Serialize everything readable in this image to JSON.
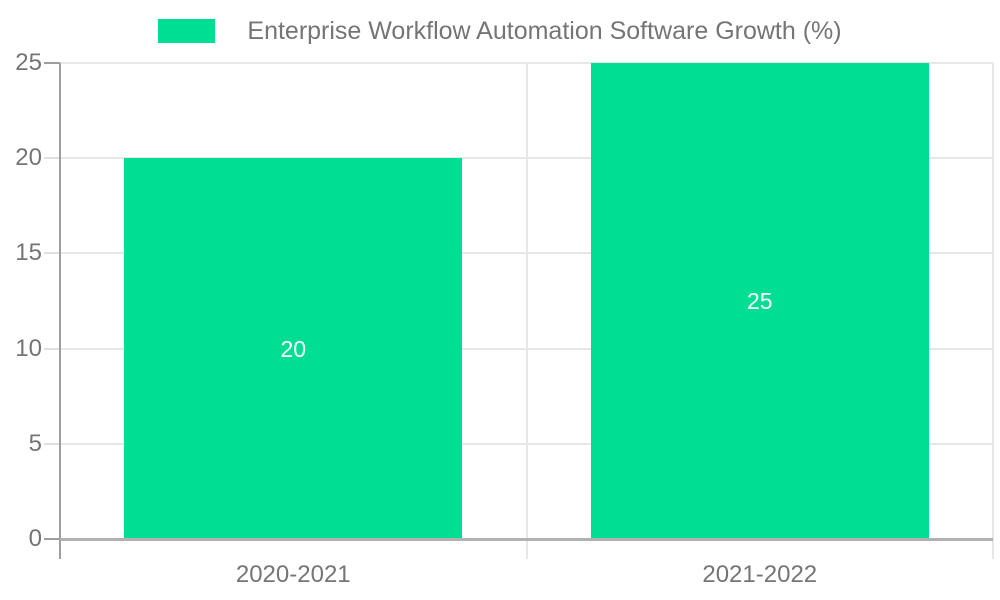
{
  "legend": {
    "label": "Enterprise Workflow Automation Software Growth (%)",
    "swatch_color": "#00DE94"
  },
  "chart_data": {
    "type": "bar",
    "title": "Enterprise Workflow Automation Software Growth (%)",
    "categories": [
      "2020-2021",
      "2021-2022"
    ],
    "values": [
      20,
      25
    ],
    "bar_labels": [
      "20",
      "25"
    ],
    "yticks": [
      0,
      5,
      10,
      15,
      20,
      25
    ],
    "ylim": [
      0,
      25
    ],
    "xlabel": "",
    "ylabel": "",
    "grid": true,
    "legend_position": "top-center",
    "colors": {
      "bar": "#00DE94",
      "bar_label": "#ffffff",
      "axis_text": "#757575",
      "gridline": "#e7e7e7",
      "axis_line": "#9e9e9e",
      "baseline": "#b1b1b1"
    }
  }
}
